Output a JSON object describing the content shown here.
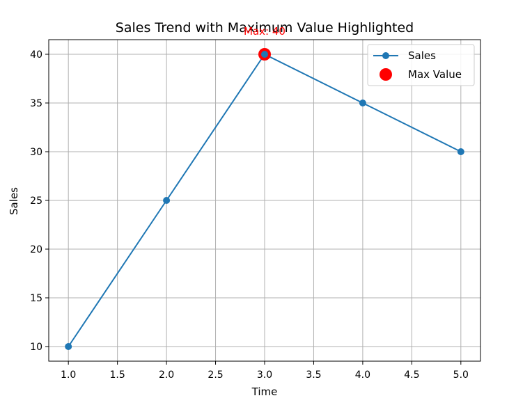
{
  "chart_data": {
    "type": "line",
    "title": "Sales Trend with Maximum Value Highlighted",
    "xlabel": "Time",
    "ylabel": "Sales",
    "x": [
      1,
      2,
      3,
      4,
      5
    ],
    "series": [
      {
        "name": "Sales",
        "values": [
          10,
          25,
          40,
          35,
          30
        ],
        "color": "#1f77b4",
        "marker": "circle"
      }
    ],
    "highlight": {
      "name": "Max Value",
      "x": 3,
      "y": 40,
      "color": "#ff0000",
      "marker": "circle"
    },
    "annotation": {
      "text": "Max: 40",
      "x": 3,
      "y": 40,
      "color": "#ff0000"
    },
    "xlim": [
      0.8,
      5.2
    ],
    "ylim": [
      8.5,
      41.5
    ],
    "xticks": [
      "1.0",
      "1.5",
      "2.0",
      "2.5",
      "3.0",
      "3.5",
      "4.0",
      "4.5",
      "5.0"
    ],
    "yticks": [
      "10",
      "15",
      "20",
      "25",
      "30",
      "35",
      "40"
    ],
    "grid": true,
    "legend": {
      "position": "top-right"
    }
  }
}
